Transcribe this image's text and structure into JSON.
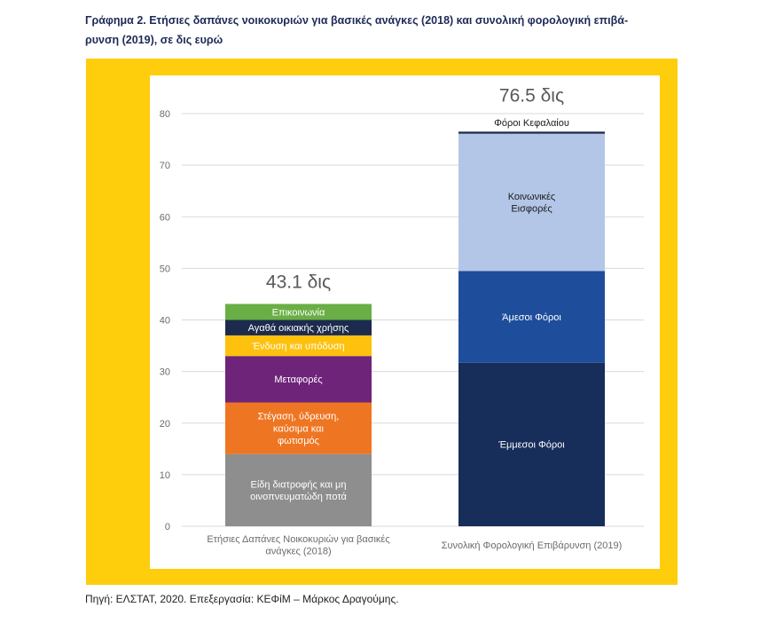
{
  "title": "Γράφημα 2. Ετήσιες δαπάνες νοικοκυριών για βασικές ανάγκες (2018) και συνολική φορολογική επιβά-\nρυνση (2019), σε δις ευρώ",
  "source": "Πηγή: ΕΛΣΤΑΤ, 2020. Επεξεργασία: ΚΕΦίΜ – Μάρκος Δραγούμης.",
  "colors": {
    "frame": "#fecd0c",
    "grid": "#d9d9d9",
    "axis_text": "#6b6b6b"
  },
  "chart_data": {
    "type": "bar",
    "stacked": true,
    "ylim": [
      0,
      80
    ],
    "yticks": [
      0,
      10,
      20,
      30,
      40,
      50,
      60,
      70,
      80
    ],
    "grid": true,
    "legend": "none",
    "bars": [
      {
        "category": "Ετήσιες Δαπάνες Νοικοκυριών για βασικές\nανάγκες (2018)",
        "total_label": "43.1 δις",
        "segments": [
          {
            "name": "Είδη διατροφής και μη\nοινοπνευματώδη ποτά",
            "value": 14.0,
            "color": "#8e8e8e"
          },
          {
            "name": "Στέγαση, ύδρευση,\nκαύσιμα και\nφωτισμός",
            "value": 10.0,
            "color": "#ee7623"
          },
          {
            "name": "Μεταφορές",
            "value": 9.0,
            "color": "#6e2479"
          },
          {
            "name": "Ένδυση και υπόδυση",
            "value": 4.0,
            "color": "#fdc10e"
          },
          {
            "name": "Αγαθά οικιακής χρήσης",
            "value": 3.0,
            "color": "#1c2b4d"
          },
          {
            "name": "Επικοινωνία",
            "value": 3.1,
            "color": "#6aaf45"
          }
        ]
      },
      {
        "category": "Συνολική Φορολογική Επιβάρυνση (2019)",
        "total_label": "76.5 δις",
        "segments": [
          {
            "name": "Έμμεσοι Φόροι",
            "value": 31.7,
            "color": "#172d5a"
          },
          {
            "name": "Άμεσοι Φόροι",
            "value": 17.8,
            "color": "#1e4d9b"
          },
          {
            "name": "Κοινωνικές\nΕισφορές",
            "value": 26.6,
            "color": "#b3c6e7"
          },
          {
            "name": "Φόροι Κεφαλαίου",
            "value": 0.4,
            "color": "#1c2b4d"
          }
        ]
      }
    ]
  }
}
